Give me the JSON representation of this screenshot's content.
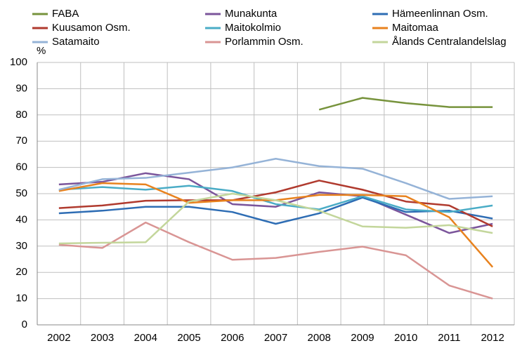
{
  "chart_data": {
    "type": "line",
    "y_label": "%",
    "categories": [
      "2002",
      "2003",
      "2004",
      "2005",
      "2006",
      "2007",
      "2008",
      "2009",
      "2010",
      "2011",
      "2012"
    ],
    "ylim": [
      0,
      100
    ],
    "yticks": [
      0,
      10,
      20,
      30,
      40,
      50,
      60,
      70,
      80,
      90,
      100
    ],
    "grid": true,
    "series": [
      {
        "name": "FABA",
        "color": "#77933c",
        "values": [
          null,
          null,
          null,
          null,
          null,
          null,
          82,
          86.5,
          84.5,
          83,
          83
        ]
      },
      {
        "name": "Munakunta",
        "color": "#7b559b",
        "values": [
          53.5,
          54.5,
          57.8,
          55.5,
          46,
          45,
          50.5,
          49,
          42,
          35,
          38.5
        ]
      },
      {
        "name": "Hämeenlinnan Osm.",
        "color": "#2e6db4",
        "values": [
          42.5,
          43.5,
          45,
          45,
          43,
          38.5,
          42.5,
          48.5,
          43,
          43.5,
          40.5
        ]
      },
      {
        "name": "Kuusamon Osm.",
        "color": "#b03a2e",
        "values": [
          44.5,
          45.5,
          47.3,
          47.5,
          47.5,
          50.5,
          55,
          51.5,
          47,
          45.5,
          37.5
        ]
      },
      {
        "name": "Maitokolmio",
        "color": "#4aacc6",
        "values": [
          51.5,
          52.5,
          51.5,
          53,
          51,
          46,
          44,
          49,
          44,
          43,
          45.5
        ]
      },
      {
        "name": "Maitomaa",
        "color": "#e8821e",
        "values": [
          51,
          54,
          53.5,
          46.5,
          47.5,
          47.5,
          49.5,
          49.5,
          49,
          41,
          22
        ]
      },
      {
        "name": "Satamaito",
        "color": "#95b3d7",
        "values": [
          51.5,
          55.5,
          56,
          58,
          60,
          63.3,
          60.5,
          59.5,
          54,
          48,
          49
        ]
      },
      {
        "name": "Porlammin Osm.",
        "color": "#d99594",
        "values": [
          30.5,
          29.3,
          39,
          31.5,
          24.8,
          25.5,
          27.8,
          29.8,
          26.5,
          15,
          10
        ]
      },
      {
        "name": "Ålands Centralandelslag",
        "color": "#c3d69b",
        "values": [
          31,
          31.3,
          31.5,
          47,
          50,
          47.5,
          43.5,
          37.5,
          37,
          38,
          35
        ]
      }
    ]
  }
}
